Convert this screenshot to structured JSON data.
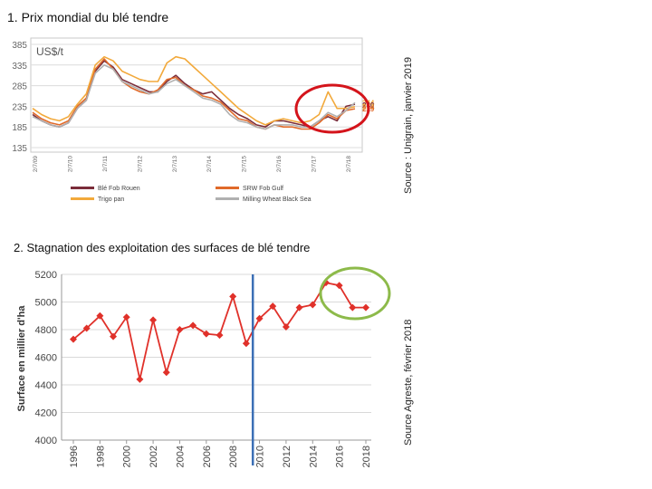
{
  "titles": {
    "chart1": "1. Prix mondial du blé tendre",
    "chart2": "2. Stagnation des exploitation des surfaces de blé tendre"
  },
  "sources": {
    "chart1": "Source : Unigrain, janvier 2019",
    "chart2": "Source Agreste, février 2018"
  },
  "colors": {
    "rouen": "#7b2d3a",
    "trigo": "#f2a93b",
    "srw": "#e06a2a",
    "blacksea": "#b0b0b0",
    "surface_line": "#e0312a",
    "divider": "#3c6fb5",
    "red_circle": "#d4141b",
    "green_circle": "#8dba4a"
  },
  "chart_data": [
    {
      "type": "line",
      "unit_label": "US$/t",
      "ylim": [
        135,
        385
      ],
      "yticks": [
        "385",
        "335",
        "285",
        "235",
        "185",
        "135"
      ],
      "xticks": [
        "2/7/09",
        "2/7/10",
        "2/7/11",
        "2/7/12",
        "2/7/13",
        "2/7/14",
        "2/7/15",
        "2/7/16",
        "2/7/17",
        "2/7/18"
      ],
      "end_labels": [
        {
          "text": "244",
          "value": 244,
          "color": "#f2a93b"
        },
        {
          "text": "240",
          "value": 240,
          "color": "#7b2d3a"
        },
        {
          "text": "234",
          "value": 234,
          "color": "#f2a93b"
        },
        {
          "text": "229",
          "value": 229,
          "color": "#e06a2a"
        }
      ],
      "legend": [
        "Blé Fob Rouen",
        "SRW Fob Gulf",
        "Trigo pan",
        "Milling Wheat Black Sea"
      ],
      "series": [
        {
          "name": "Blé Fob Rouen",
          "color": "#7b2d3a",
          "values": [
            215,
            200,
            190,
            185,
            195,
            230,
            250,
            320,
            345,
            330,
            300,
            290,
            280,
            270,
            270,
            295,
            310,
            290,
            275,
            265,
            270,
            250,
            230,
            215,
            205,
            190,
            185,
            200,
            200,
            195,
            190,
            185,
            200,
            210,
            200,
            235,
            240
          ]
        },
        {
          "name": "SRW Fob Gulf",
          "color": "#e06a2a",
          "values": [
            220,
            205,
            195,
            190,
            200,
            235,
            255,
            325,
            350,
            325,
            295,
            280,
            270,
            265,
            275,
            300,
            305,
            285,
            275,
            260,
            255,
            245,
            225,
            205,
            200,
            185,
            180,
            190,
            185,
            185,
            180,
            180,
            195,
            215,
            205,
            225,
            229
          ]
        },
        {
          "name": "Trigo pan",
          "color": "#f2a93b",
          "values": [
            230,
            215,
            205,
            200,
            210,
            240,
            265,
            335,
            355,
            345,
            320,
            310,
            300,
            295,
            295,
            340,
            355,
            350,
            330,
            310,
            290,
            270,
            250,
            230,
            215,
            200,
            190,
            200,
            205,
            200,
            195,
            200,
            215,
            270,
            230,
            230,
            234
          ]
        },
        {
          "name": "Milling Wheat Black Sea",
          "color": "#b0b0b0",
          "values": [
            210,
            200,
            190,
            185,
            195,
            230,
            250,
            315,
            335,
            325,
            295,
            285,
            275,
            265,
            270,
            290,
            300,
            285,
            270,
            255,
            250,
            240,
            215,
            200,
            195,
            185,
            180,
            190,
            190,
            190,
            185,
            185,
            200,
            220,
            210,
            225,
            244
          ]
        }
      ]
    },
    {
      "type": "line",
      "ylabel": "Surface en millier d'ha",
      "ylim": [
        4000,
        5200
      ],
      "yticks": [
        4000,
        4200,
        4400,
        4600,
        4800,
        5000,
        5200
      ],
      "xticks": [
        "1996",
        "1998",
        "2000",
        "2002",
        "2004",
        "2006",
        "2008",
        "2010",
        "2012",
        "2014",
        "2016",
        "2018"
      ],
      "x": [
        1996,
        1997,
        1998,
        1999,
        2000,
        2001,
        2002,
        2003,
        2004,
        2005,
        2006,
        2007,
        2008,
        2009,
        2010,
        2011,
        2012,
        2013,
        2014,
        2015,
        2016,
        2017,
        2018
      ],
      "values": [
        4730,
        4810,
        4900,
        4750,
        4890,
        4440,
        4870,
        4490,
        4800,
        4830,
        4770,
        4760,
        5040,
        4700,
        4880,
        4970,
        4820,
        4960,
        4980,
        5140,
        5120,
        4960,
        4960
      ],
      "divider_year": 2009.5
    }
  ]
}
